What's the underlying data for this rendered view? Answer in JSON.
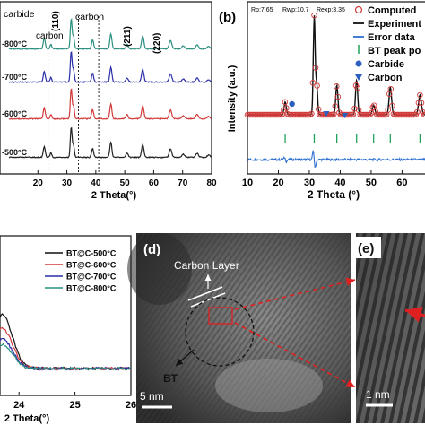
{
  "panel_a": {
    "traces": [
      {
        "label": "-800°C",
        "color": "#2a8f7f"
      },
      {
        "label": "-700°C",
        "color": "#2b2fa8"
      },
      {
        "label": "-600°C",
        "color": "#d23a3a"
      },
      {
        "label": "-500°C",
        "color": "#222222"
      }
    ],
    "annotations": {
      "carbide": "carbide",
      "carbon_left": "carbon",
      "carbon_right": "carbon"
    },
    "peak_labels": [
      "(110)",
      "(211)",
      "(220)"
    ],
    "x_ticks": [
      "20",
      "30",
      "40",
      "50",
      "60",
      "70",
      "80"
    ],
    "x_label": "2 Theta(°)"
  },
  "panel_b": {
    "panel_label": "(b)",
    "stats": {
      "rp": "Rp:7.65",
      "rwp": "Rwp:10.7",
      "rexp": "Rexp:3.35"
    },
    "legend": {
      "computed": "Computed",
      "experiment": "Experiment",
      "error": "Error data",
      "bt_peak": "BT peak po",
      "carbide": "Carbide",
      "carbon": "Carbon"
    },
    "y_label": "Intensity (a.u.)",
    "x_ticks": [
      "10",
      "20",
      "30",
      "40",
      "50",
      "60"
    ],
    "x_label": "2 Theta (°)",
    "colors": {
      "computed": "#d23a3a",
      "experiment": "#111111",
      "error": "#2c6fd1",
      "bt_peak": "#1fa35c",
      "carbide": "#2c5fbf",
      "carbon": "#2c5fbf"
    }
  },
  "panel_c": {
    "legend": [
      {
        "label": "BT@C-500°C",
        "color": "#111111"
      },
      {
        "label": "BT@C-600°C",
        "color": "#d23a3a"
      },
      {
        "label": "BT@C-700°C",
        "color": "#2b2fa8"
      },
      {
        "label": "BT@C-800°C",
        "color": "#2a8f7f"
      }
    ],
    "x_ticks": [
      "24",
      "25",
      "26"
    ],
    "x_label": "2 Theta(°)"
  },
  "panel_d": {
    "panel_label": "(d)",
    "carbon_layer": "Carbon Layer",
    "bt": "BT",
    "scale_bar": "5 nm"
  },
  "panel_e": {
    "panel_label": "(e)",
    "scale_bar": "1 nm"
  }
}
